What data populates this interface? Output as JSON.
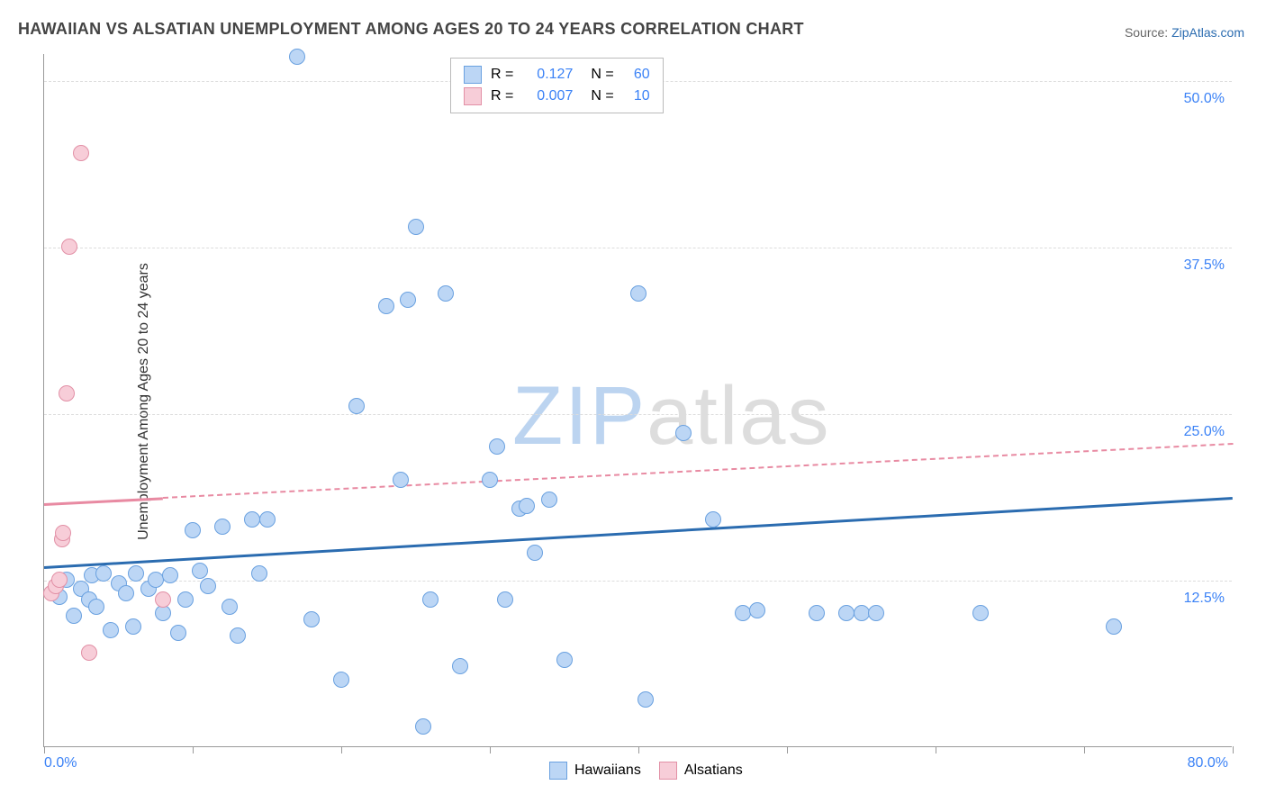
{
  "title": "HAWAIIAN VS ALSATIAN UNEMPLOYMENT AMONG AGES 20 TO 24 YEARS CORRELATION CHART",
  "source_prefix": "Source: ",
  "source_link": "ZipAtlas.com",
  "ylabel": "Unemployment Among Ages 20 to 24 years",
  "watermark_a": "ZIP",
  "watermark_b": "atlas",
  "chart": {
    "type": "scatter",
    "plot_bg": "#ffffff",
    "grid_color": "#dddddd",
    "axis_color": "#999999",
    "xlim": [
      0,
      80
    ],
    "ylim": [
      0,
      52
    ],
    "x_label_min": "0.0%",
    "x_label_max": "80.0%",
    "xtick_positions": [
      0,
      10,
      20,
      30,
      40,
      50,
      60,
      70,
      80
    ],
    "ygrid": [
      {
        "v": 12.5,
        "label": "12.5%"
      },
      {
        "v": 25.0,
        "label": "25.0%"
      },
      {
        "v": 37.5,
        "label": "37.5%"
      },
      {
        "v": 50.0,
        "label": "50.0%"
      }
    ],
    "ytick_color": "#3b82f6",
    "ytick_fontsize": 16,
    "marker_radius": 9,
    "marker_border_width": 1.5,
    "series": [
      {
        "name": "Hawaiians",
        "fill": "#bcd6f5",
        "border": "#6aa1e0",
        "trend": {
          "x0": 0,
          "y0": 13.6,
          "x1": 80,
          "y1": 18.8,
          "color": "#2b6cb0",
          "solid_until_x": 80
        },
        "r_value": "0.127",
        "n_value": "60",
        "points": [
          [
            1,
            11.2
          ],
          [
            1.5,
            12.5
          ],
          [
            2,
            9.8
          ],
          [
            2.5,
            11.8
          ],
          [
            3,
            11.0
          ],
          [
            3.2,
            12.8
          ],
          [
            3.5,
            10.5
          ],
          [
            4,
            13.0
          ],
          [
            4.5,
            8.7
          ],
          [
            5,
            12.2
          ],
          [
            5.5,
            11.5
          ],
          [
            6,
            9.0
          ],
          [
            6.2,
            13.0
          ],
          [
            7,
            11.8
          ],
          [
            7.5,
            12.5
          ],
          [
            8,
            10.0
          ],
          [
            8.5,
            12.8
          ],
          [
            9,
            8.5
          ],
          [
            9.5,
            11.0
          ],
          [
            10,
            16.2
          ],
          [
            10.5,
            13.2
          ],
          [
            11,
            12.0
          ],
          [
            12,
            16.5
          ],
          [
            12.5,
            10.5
          ],
          [
            13,
            8.3
          ],
          [
            14,
            17.0
          ],
          [
            14.5,
            13.0
          ],
          [
            15,
            17.0
          ],
          [
            17,
            51.7
          ],
          [
            18,
            9.5
          ],
          [
            20,
            5.0
          ],
          [
            21,
            25.5
          ],
          [
            23,
            33.0
          ],
          [
            24,
            20.0
          ],
          [
            24.5,
            33.5
          ],
          [
            25,
            39.0
          ],
          [
            25.5,
            1.5
          ],
          [
            26,
            11.0
          ],
          [
            27,
            34.0
          ],
          [
            28,
            6.0
          ],
          [
            30,
            20.0
          ],
          [
            30.5,
            22.5
          ],
          [
            31,
            11.0
          ],
          [
            32,
            17.8
          ],
          [
            32.5,
            18.0
          ],
          [
            33,
            14.5
          ],
          [
            34,
            18.5
          ],
          [
            35,
            6.5
          ],
          [
            40,
            34.0
          ],
          [
            40.5,
            3.5
          ],
          [
            43,
            23.5
          ],
          [
            45,
            17.0
          ],
          [
            47,
            10.0
          ],
          [
            48,
            10.2
          ],
          [
            52,
            10.0
          ],
          [
            54,
            10.0
          ],
          [
            55,
            10.0
          ],
          [
            56,
            10.0
          ],
          [
            63,
            10.0
          ],
          [
            72,
            9.0
          ]
        ]
      },
      {
        "name": "Alsatians",
        "fill": "#f7cdd8",
        "border": "#e290a6",
        "trend": {
          "x0": 0,
          "y0": 18.3,
          "x1": 80,
          "y1": 22.8,
          "color": "#e88aa2",
          "solid_until_x": 8
        },
        "r_value": "0.007",
        "n_value": "10",
        "points": [
          [
            0.5,
            11.5
          ],
          [
            0.8,
            12.0
          ],
          [
            1.0,
            12.5
          ],
          [
            1.2,
            15.5
          ],
          [
            1.3,
            16.0
          ],
          [
            1.5,
            26.5
          ],
          [
            1.7,
            37.5
          ],
          [
            2.5,
            44.5
          ],
          [
            3.0,
            7.0
          ],
          [
            8.0,
            11.0
          ]
        ]
      }
    ],
    "legend_stats": {
      "labels": {
        "r": "R =",
        "n": "N ="
      }
    },
    "legend_bottom": [
      {
        "label": "Hawaiians",
        "fill": "#bcd6f5",
        "border": "#6aa1e0"
      },
      {
        "label": "Alsatians",
        "fill": "#f7cdd8",
        "border": "#e290a6"
      }
    ]
  }
}
